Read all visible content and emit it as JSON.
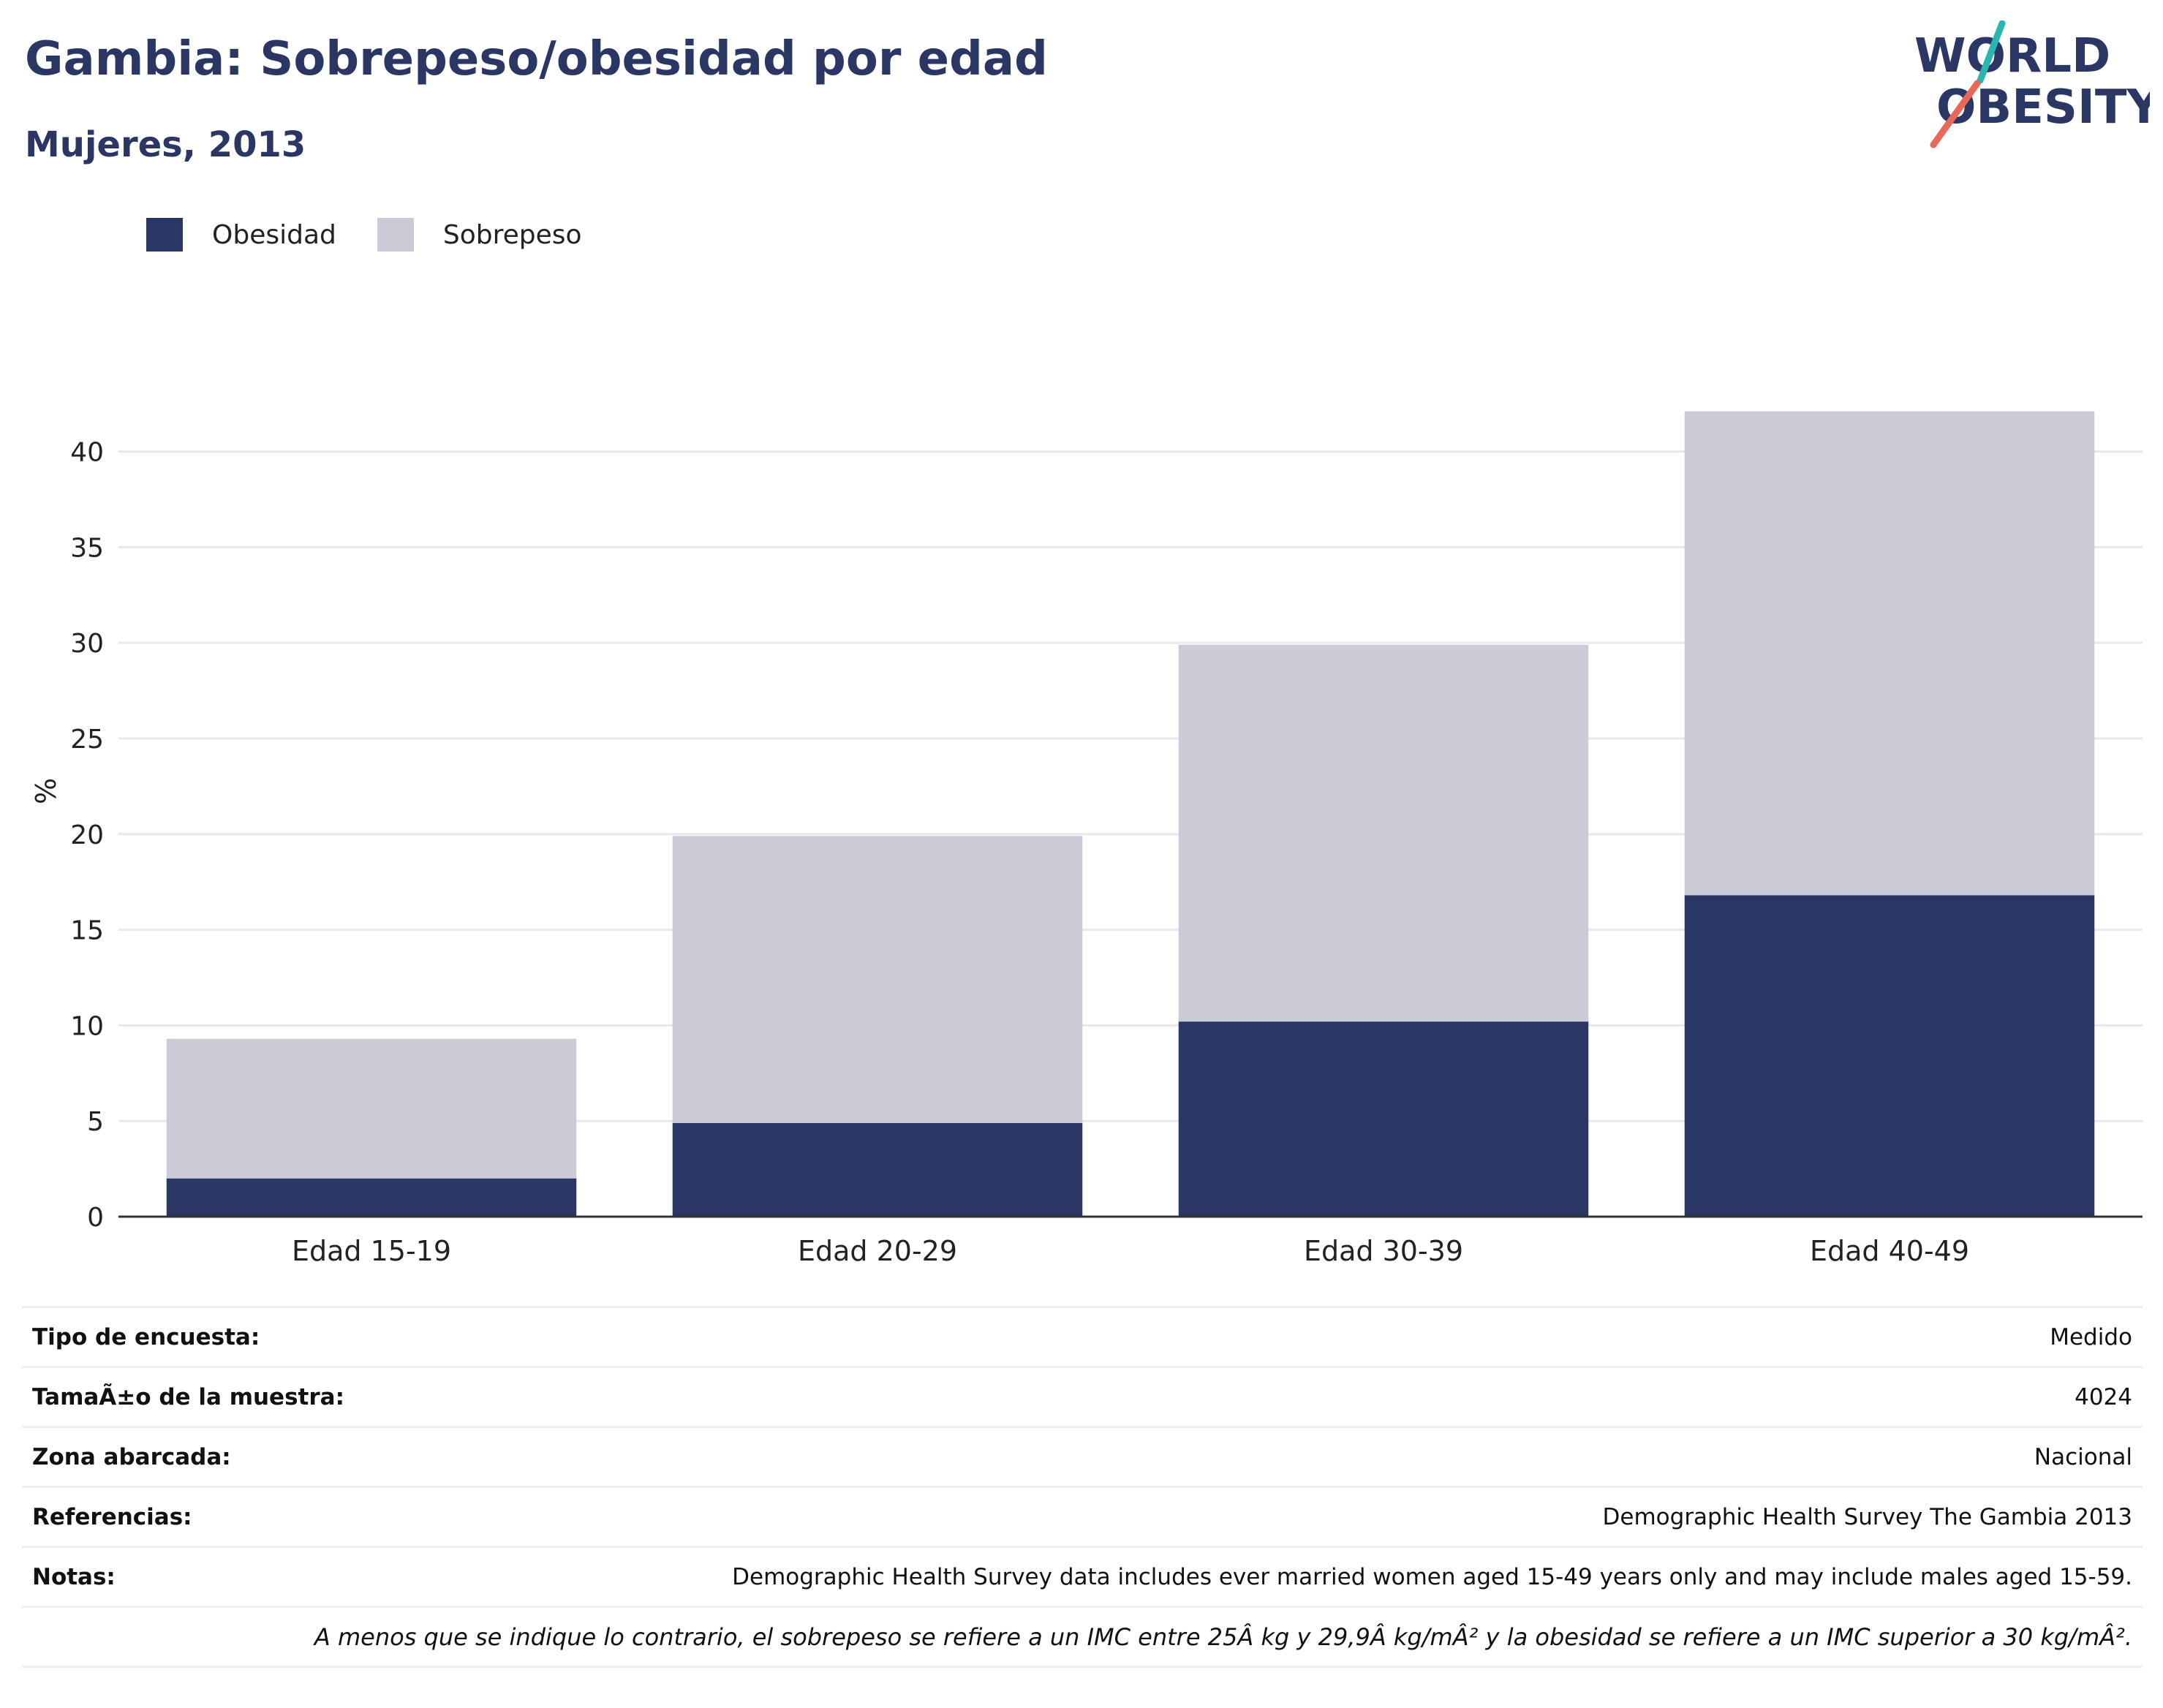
{
  "title": "Gambia: Sobrepeso/obesidad por edad",
  "subtitle": "Mujeres, 2013",
  "logo": {
    "line1": "WORLD",
    "line2": "OBESITY",
    "accent_teal": "#2bb5b0",
    "accent_coral": "#e8685a"
  },
  "legend": [
    {
      "label": "Obesidad",
      "color": "#2a3663"
    },
    {
      "label": "Sobrepeso",
      "color": "#cacbd6"
    }
  ],
  "chart_data": {
    "type": "bar",
    "stacked": true,
    "categories": [
      "Edad 15-19",
      "Edad 20-29",
      "Edad 30-39",
      "Edad 40-49"
    ],
    "series": [
      {
        "name": "Obesidad",
        "values": [
          2.0,
          4.9,
          10.2,
          16.8
        ],
        "color": "#2a3663"
      },
      {
        "name": "Sobrepeso",
        "values": [
          7.3,
          15.0,
          19.7,
          25.3
        ],
        "color": "#cacbd6"
      }
    ],
    "ylabel": "%",
    "ylim": [
      0,
      42.2
    ],
    "yticks": [
      0,
      5,
      10,
      15,
      20,
      25,
      30,
      35,
      40
    ],
    "grid": true,
    "legend_position": "top-left"
  },
  "info": [
    {
      "key": "Tipo de encuesta:",
      "value": "Medido"
    },
    {
      "key": "TamaÃ±o de la muestra:",
      "value": "4024"
    },
    {
      "key": "Zona abarcada:",
      "value": "Nacional"
    },
    {
      "key": "Referencias:",
      "value": "Demographic Health Survey The Gambia 2013"
    },
    {
      "key": "Notas:",
      "value": "Demographic Health Survey data includes ever married women aged 15-49 years only and may include males aged 15-59."
    }
  ],
  "footnote": "A menos que se indique lo contrario, el sobrepeso se refiere a un IMC entre 25Â kg y 29,9Â kg/mÂ² y la obesidad se refiere a un IMC superior a 30 kg/mÂ²."
}
